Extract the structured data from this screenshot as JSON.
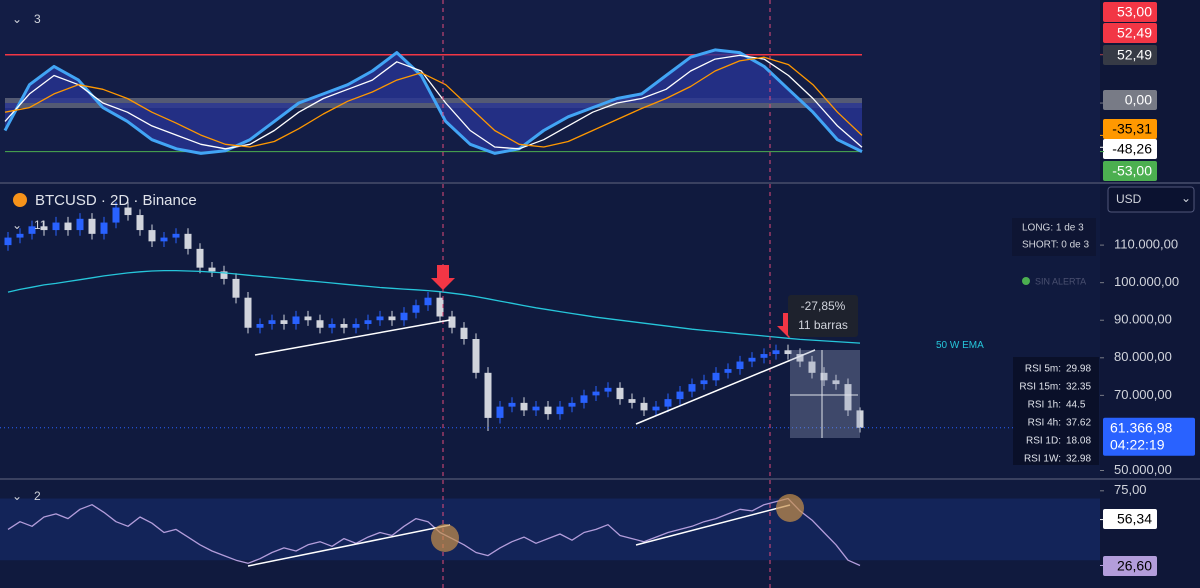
{
  "chart_data": [
    {
      "type": "line",
      "ylim": [
        -84,
        107
      ],
      "levels": [
        {
          "value": 53,
          "color": "#f23645"
        },
        {
          "value": 52.49,
          "color": "#f23645"
        },
        {
          "value": 0,
          "color": "#9598a1"
        },
        {
          "value": -53,
          "color": "#4caf50"
        }
      ],
      "series": [
        {
          "color": "#42a5f5",
          "fill": "#283593",
          "values": [
            -30,
            20,
            40,
            25,
            -5,
            -20,
            -40,
            -50,
            -55,
            -52,
            -40,
            -20,
            0,
            10,
            20,
            35,
            55,
            30,
            -20,
            -45,
            -55,
            -50,
            -30,
            -15,
            -5,
            5,
            10,
            30,
            50,
            58,
            55,
            40,
            15,
            -10,
            -40,
            -53
          ]
        },
        {
          "color": "#ffffff",
          "values": [
            -20,
            10,
            30,
            20,
            0,
            -10,
            -25,
            -35,
            -45,
            -50,
            -45,
            -30,
            -10,
            5,
            15,
            25,
            45,
            35,
            0,
            -30,
            -48,
            -50,
            -40,
            -25,
            -10,
            0,
            5,
            15,
            35,
            48,
            52,
            48,
            30,
            5,
            -25,
            -48.26
          ]
        },
        {
          "color": "#ff9800",
          "values": [
            -10,
            -5,
            10,
            20,
            15,
            5,
            -10,
            -22,
            -35,
            -45,
            -48,
            -42,
            -28,
            -12,
            2,
            12,
            25,
            33,
            20,
            -5,
            -30,
            -45,
            -48,
            -42,
            -30,
            -18,
            -6,
            5,
            18,
            35,
            46,
            50,
            42,
            20,
            -10,
            -35.31
          ]
        }
      ],
      "badges": [
        {
          "value": 53,
          "label": "53,00",
          "color": "#f23645",
          "text_color": "#ffffff"
        },
        {
          "value": 52.49,
          "label": "52,49",
          "color": "#f23645",
          "text_color": "#ffffff"
        },
        {
          "value": 52.49,
          "label": "52,49",
          "color": "#363a45",
          "text_color": "#ffffff"
        },
        {
          "value": 0,
          "label": "0,00",
          "color": "#787b86",
          "text_color": "#ffffff"
        },
        {
          "value": -35.31,
          "label": "-35,31",
          "color": "#ff9800",
          "text_color": "#000000"
        },
        {
          "value": -48.26,
          "label": "-48,26",
          "color": "#ffffff",
          "text_color": "#000000"
        },
        {
          "value": -53,
          "label": "-53,00",
          "color": "#4caf50",
          "text_color": "#ffffff"
        }
      ]
    },
    {
      "type": "candlestick",
      "title": "BTCUSD · 2D · Binance",
      "ylim": [
        48000,
        126000
      ],
      "up_color": "#2962ff",
      "down_color": "#d1d4dc",
      "yticks": [
        {
          "value": 110000,
          "label": "110.000,00"
        },
        {
          "value": 100000,
          "label": "100.000,00"
        },
        {
          "value": 90000,
          "label": "90.000,00"
        },
        {
          "value": 80000,
          "label": "80.000,00"
        },
        {
          "value": 70000,
          "label": "70.000,00"
        },
        {
          "value": 50000,
          "label": "50.000,00"
        }
      ],
      "ohlc": [
        [
          110000,
          113500,
          108500,
          112000
        ],
        [
          112000,
          114500,
          110500,
          113000
        ],
        [
          113000,
          116500,
          111500,
          115000
        ],
        [
          115000,
          116500,
          112500,
          114000
        ],
        [
          114000,
          117500,
          112500,
          116000
        ],
        [
          116000,
          117500,
          112500,
          114000
        ],
        [
          114000,
          118500,
          112500,
          117000
        ],
        [
          117000,
          118500,
          111500,
          113000
        ],
        [
          113000,
          117500,
          111500,
          116000
        ],
        [
          116000,
          121500,
          114500,
          120000
        ],
        [
          120000,
          121500,
          116500,
          118000
        ],
        [
          118000,
          119500,
          112500,
          114000
        ],
        [
          114000,
          115500,
          109500,
          111000
        ],
        [
          111000,
          113500,
          109500,
          112000
        ],
        [
          112000,
          114500,
          110500,
          113000
        ],
        [
          113000,
          114500,
          107500,
          109000
        ],
        [
          109000,
          110500,
          102500,
          104000
        ],
        [
          104000,
          105500,
          101500,
          103000
        ],
        [
          103000,
          104500,
          99500,
          101000
        ],
        [
          101000,
          102500,
          94500,
          96000
        ],
        [
          96000,
          97500,
          86500,
          88000
        ],
        [
          88000,
          90500,
          86500,
          89000
        ],
        [
          89000,
          91500,
          87500,
          90000
        ],
        [
          90000,
          91500,
          87500,
          89000
        ],
        [
          89000,
          92500,
          87500,
          91000
        ],
        [
          91000,
          92500,
          88500,
          90000
        ],
        [
          90000,
          91500,
          86500,
          88000
        ],
        [
          88000,
          90500,
          86500,
          89000
        ],
        [
          89000,
          90500,
          86500,
          88000
        ],
        [
          88000,
          90500,
          86500,
          89000
        ],
        [
          89000,
          91500,
          87500,
          90000
        ],
        [
          90000,
          92500,
          88500,
          91000
        ],
        [
          91000,
          92500,
          88500,
          90000
        ],
        [
          90000,
          93500,
          88500,
          92000
        ],
        [
          92000,
          95500,
          90500,
          94000
        ],
        [
          94000,
          97500,
          92500,
          96000
        ],
        [
          96000,
          97500,
          89500,
          91000
        ],
        [
          91000,
          92500,
          86500,
          88000
        ],
        [
          88000,
          89500,
          83500,
          85000
        ],
        [
          85000,
          86500,
          74500,
          76000
        ],
        [
          76000,
          77500,
          60500,
          64000
        ],
        [
          64000,
          68500,
          62500,
          67000
        ],
        [
          67000,
          69500,
          65500,
          68000
        ],
        [
          68000,
          69500,
          64500,
          66000
        ],
        [
          66000,
          68500,
          64500,
          67000
        ],
        [
          67000,
          68500,
          63500,
          65000
        ],
        [
          65000,
          68500,
          63500,
          67000
        ],
        [
          67000,
          69500,
          65500,
          68000
        ],
        [
          68000,
          71500,
          66500,
          70000
        ],
        [
          70000,
          72500,
          68500,
          71000
        ],
        [
          71000,
          73500,
          69500,
          72000
        ],
        [
          72000,
          73500,
          67500,
          69000
        ],
        [
          69000,
          70500,
          66500,
          68000
        ],
        [
          68000,
          69500,
          64500,
          66000
        ],
        [
          66000,
          68500,
          64500,
          67000
        ],
        [
          67000,
          70500,
          65500,
          69000
        ],
        [
          69000,
          72500,
          67500,
          71000
        ],
        [
          71000,
          74500,
          69500,
          73000
        ],
        [
          73000,
          75500,
          71500,
          74000
        ],
        [
          74000,
          77500,
          72500,
          76000
        ],
        [
          76000,
          78500,
          74500,
          77000
        ],
        [
          77000,
          80500,
          75500,
          79000
        ],
        [
          79000,
          81500,
          77500,
          80000
        ],
        [
          80000,
          82500,
          78500,
          81000
        ],
        [
          81000,
          83500,
          79500,
          82000
        ],
        [
          82000,
          83500,
          79500,
          81000
        ],
        [
          81000,
          82500,
          77500,
          79000
        ],
        [
          79000,
          80500,
          74500,
          76000
        ],
        [
          76000,
          77500,
          72500,
          74000
        ],
        [
          74000,
          75500,
          71500,
          73000
        ],
        [
          73000,
          74500,
          64500,
          66000
        ],
        [
          66000,
          66800,
          60100,
          61366.98
        ]
      ],
      "series": [
        {
          "name": "50 W EMA",
          "color": "#26c6da",
          "values": [
            97500,
            98200,
            98800,
            99400,
            99800,
            100300,
            100800,
            101300,
            101800,
            102200,
            102600,
            102900,
            103100,
            103200,
            103200,
            103100,
            103000,
            102800,
            102600,
            102300,
            102000,
            101700,
            101400,
            101100,
            100800,
            100500,
            100200,
            99900,
            99600,
            99300,
            99000,
            98700,
            98500,
            98300,
            98100,
            97900,
            97600,
            97200,
            96800,
            96300,
            95700,
            95100,
            94500,
            93900,
            93300,
            92800,
            92300,
            91800,
            91300,
            90800,
            90400,
            90000,
            89600,
            89200,
            88800,
            88400,
            88000,
            87600,
            87300,
            87000,
            86700,
            86400,
            86100,
            85800,
            85500,
            85200,
            84900,
            84700,
            84500,
            84300,
            84100,
            83900
          ]
        }
      ],
      "last": {
        "value": 61366.98,
        "label": "61.366,98",
        "countdown": "04:22:19",
        "color": "#2962ff"
      }
    },
    {
      "type": "line",
      "ylim": [
        12,
        82
      ],
      "band": [
        30,
        70
      ],
      "yticks": [
        {
          "value": 75,
          "label": "75,00"
        }
      ],
      "series": [
        {
          "color": "#b39ddb",
          "values": [
            50,
            55,
            52,
            58,
            60,
            57,
            63,
            66,
            61,
            55,
            52,
            58,
            54,
            48,
            50,
            45,
            40,
            36,
            33,
            30,
            28,
            31,
            35,
            38,
            36,
            40,
            42,
            39,
            44,
            41,
            45,
            48,
            46,
            52,
            57,
            55,
            48,
            44,
            40,
            35,
            33,
            38,
            42,
            45,
            41,
            44,
            47,
            43,
            48,
            50,
            53,
            46,
            44,
            42,
            45,
            48,
            50,
            52,
            55,
            57,
            60,
            63,
            62,
            66,
            68,
            70,
            62,
            56,
            48,
            40,
            30,
            26.6
          ]
        }
      ],
      "badges": [
        {
          "value": 56.34,
          "label": "56,34",
          "color": "#ffffff",
          "text_color": "#000000"
        },
        {
          "value": 26.6,
          "label": "26,60",
          "color": "#b39ddb",
          "text_color": "#000000"
        }
      ]
    }
  ],
  "ui": {
    "top_pane_count": "3",
    "main_pane_count": "11",
    "bottom_pane_count": "2",
    "currency": "USD",
    "long": "LONG: 1 de 3",
    "short": "SHORT: 0 de 3",
    "alert": "SIN ALERTA",
    "measure_change": "-27,85%",
    "measure_bars": "11 barras",
    "rsi_table": [
      {
        "label": "RSI 5m:",
        "value": 29.98
      },
      {
        "label": "RSI 15m:",
        "value": 32.35
      },
      {
        "label": "RSI 1h:",
        "value": 44.5
      },
      {
        "label": "RSI 4h:",
        "value": 37.62
      },
      {
        "label": "RSI 1D:",
        "value": 18.08
      },
      {
        "label": "RSI 1W:",
        "value": 32.98
      }
    ]
  }
}
